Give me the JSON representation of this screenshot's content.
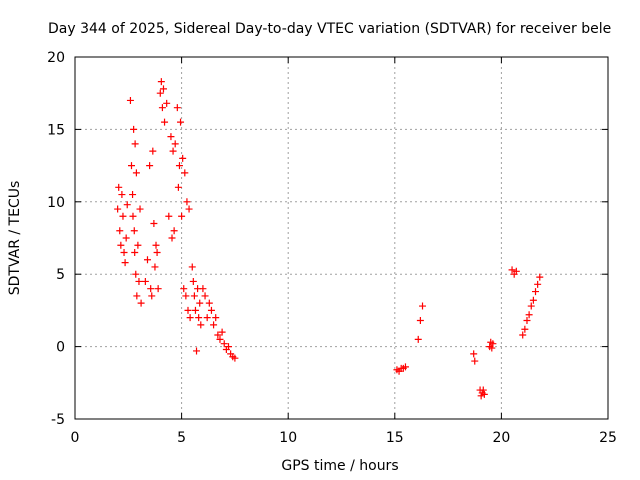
{
  "chart_data": {
    "type": "scatter",
    "title": "Day 344 of 2025, Sidereal Day-to-day VTEC variation (SDTVAR) for receiver bele",
    "xlabel": "GPS time / hours",
    "ylabel": "SDTVAR / TECUs",
    "xlim": [
      0,
      25
    ],
    "ylim": [
      -5,
      20
    ],
    "xticks": [
      0,
      5,
      10,
      15,
      20,
      25
    ],
    "yticks": [
      -5,
      0,
      5,
      10,
      15,
      20
    ],
    "xtick_labels": [
      "0",
      "5",
      "10",
      "15",
      "20",
      "25"
    ],
    "ytick_labels": [
      "-5",
      "0",
      "5",
      "10",
      "15",
      "20"
    ],
    "grid": true,
    "marker": "+",
    "color": "#ff0000",
    "series": [
      {
        "name": "SDTVAR",
        "x": [
          2.0,
          2.05,
          2.1,
          2.15,
          2.2,
          2.25,
          2.3,
          2.35,
          2.4,
          2.45,
          2.6,
          2.65,
          2.7,
          2.72,
          2.75,
          2.78,
          2.8,
          2.82,
          2.85,
          2.88,
          2.9,
          2.95,
          3.0,
          3.05,
          3.1,
          3.3,
          3.4,
          3.5,
          3.55,
          3.6,
          3.65,
          3.7,
          3.75,
          3.8,
          3.85,
          3.9,
          4.0,
          4.05,
          4.1,
          4.15,
          4.2,
          4.3,
          4.4,
          4.5,
          4.55,
          4.6,
          4.65,
          4.7,
          4.8,
          4.85,
          4.9,
          4.95,
          5.0,
          5.05,
          5.1,
          5.15,
          5.2,
          5.25,
          5.3,
          5.35,
          5.4,
          5.5,
          5.55,
          5.6,
          5.65,
          5.7,
          5.75,
          5.8,
          5.85,
          5.9,
          6.0,
          6.1,
          6.2,
          6.3,
          6.4,
          6.5,
          6.6,
          6.7,
          6.8,
          6.9,
          7.0,
          7.1,
          7.2,
          7.3,
          7.4,
          7.5,
          15.1,
          15.2,
          15.3,
          15.4,
          15.5,
          16.1,
          16.2,
          16.3,
          18.7,
          18.75,
          19.0,
          19.05,
          19.1,
          19.15,
          19.2,
          19.45,
          19.5,
          19.55,
          19.6,
          20.5,
          20.6,
          20.7,
          21.0,
          21.1,
          21.2,
          21.3,
          21.4,
          21.5,
          21.6,
          21.7,
          21.8
        ],
        "y": [
          9.5,
          11.0,
          8.0,
          7.0,
          10.5,
          9.0,
          6.5,
          5.8,
          7.5,
          9.8,
          17.0,
          12.5,
          10.5,
          9.0,
          15.0,
          8.0,
          6.5,
          14.0,
          5.0,
          12.0,
          3.5,
          7.0,
          4.5,
          9.5,
          3.0,
          4.5,
          6.0,
          12.5,
          4.0,
          3.5,
          13.5,
          8.5,
          5.5,
          7.0,
          6.5,
          4.0,
          17.5,
          18.3,
          16.5,
          17.8,
          15.5,
          16.8,
          9.0,
          14.5,
          7.5,
          13.5,
          8.0,
          14.0,
          16.5,
          11.0,
          12.5,
          15.5,
          9.0,
          13.0,
          4.0,
          12.0,
          3.5,
          10.0,
          2.5,
          9.5,
          2.0,
          5.5,
          4.5,
          3.5,
          2.5,
          -0.3,
          4.0,
          2.0,
          3.0,
          1.5,
          4.0,
          3.5,
          2.0,
          3.0,
          2.5,
          1.5,
          2.0,
          0.8,
          0.5,
          1.0,
          0.2,
          -0.2,
          0.0,
          -0.5,
          -0.7,
          -0.8,
          -1.6,
          -1.7,
          -1.5,
          -1.5,
          -1.4,
          0.5,
          1.8,
          2.8,
          -0.5,
          -1.0,
          -3.0,
          -3.4,
          -3.2,
          -3.0,
          -3.3,
          0.0,
          0.3,
          -0.1,
          0.2,
          5.3,
          5.0,
          5.2,
          0.8,
          1.2,
          1.8,
          2.2,
          2.8,
          3.2,
          3.8,
          4.3,
          4.8
        ]
      }
    ]
  }
}
